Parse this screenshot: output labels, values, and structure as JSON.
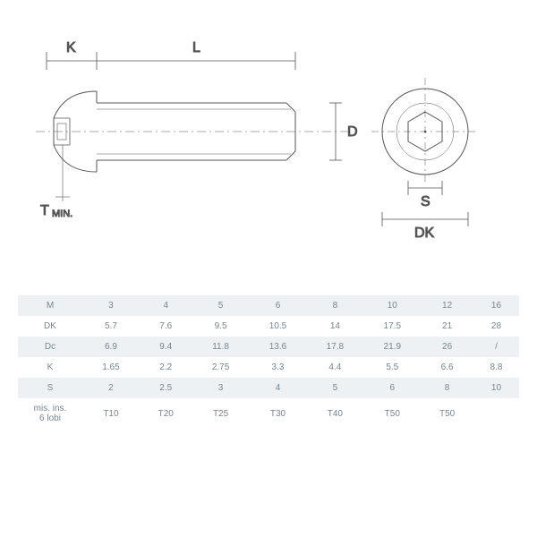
{
  "labels": {
    "K": "K",
    "L": "L",
    "D": "D",
    "S": "S",
    "DK": "DK",
    "T": "T",
    "MIN": "MIN."
  },
  "table": {
    "row_headers": [
      "M",
      "DK",
      "Dc",
      "K",
      "S",
      "mis. ins. 6 lobi"
    ],
    "columns": [
      "3",
      "4",
      "5",
      "6",
      "8",
      "10",
      "12",
      "16"
    ],
    "rows": [
      [
        "3",
        "4",
        "5",
        "6",
        "8",
        "10",
        "12",
        "16"
      ],
      [
        "5.7",
        "7.6",
        "9.5",
        "10.5",
        "14",
        "17.5",
        "21",
        "28"
      ],
      [
        "6.9",
        "9.4",
        "11.8",
        "13.6",
        "17.8",
        "21.9",
        "26",
        "/"
      ],
      [
        "1.65",
        "2.2",
        "2.75",
        "3.3",
        "4.4",
        "5.5",
        "6.6",
        "8.8"
      ],
      [
        "2",
        "2.5",
        "3",
        "4",
        "5",
        "6",
        "8",
        "10"
      ],
      [
        "T10",
        "T20",
        "T25",
        "T30",
        "T40",
        "T50",
        "T50",
        ""
      ]
    ],
    "alt_color": "#eef1f3",
    "text_color": "#77858f",
    "font_size": 10
  },
  "drawing": {
    "stroke": "#555555",
    "dash": "2,3",
    "thin": 0.8,
    "med": 1
  }
}
